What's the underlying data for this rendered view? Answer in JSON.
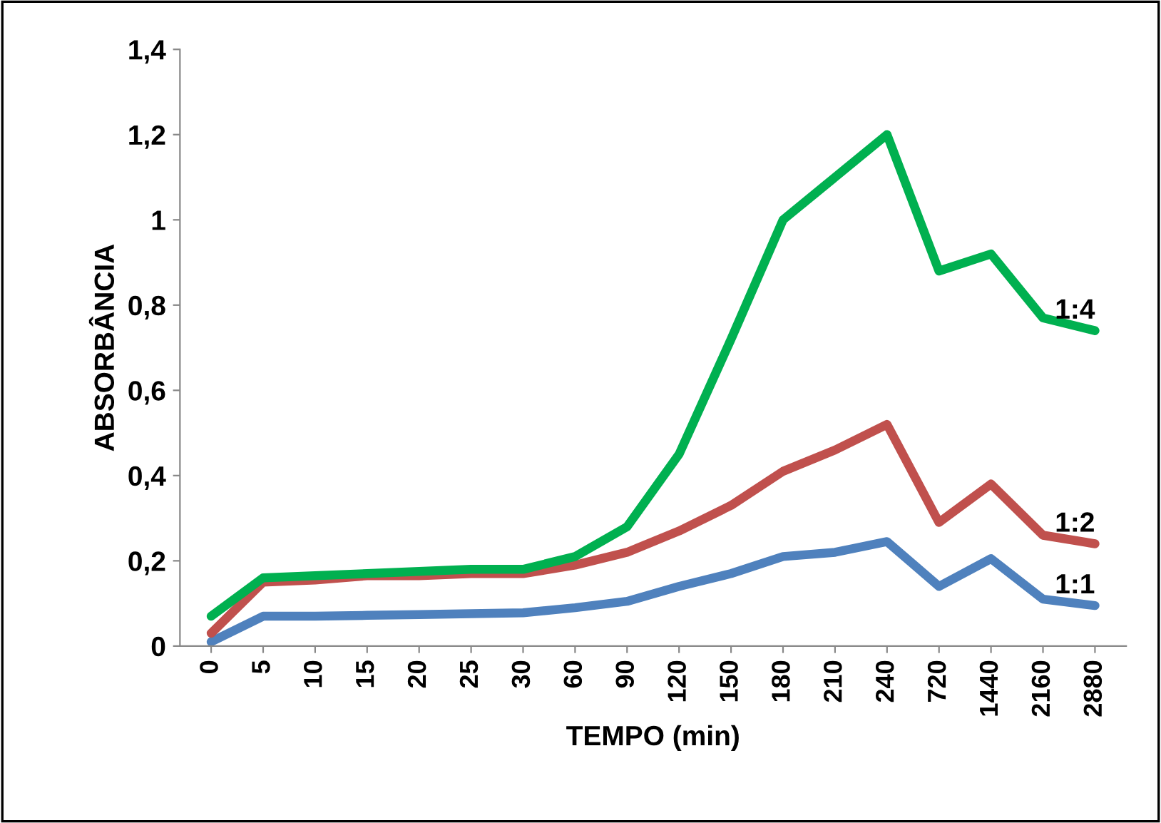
{
  "chart_data": {
    "type": "line",
    "xlabel": "TEMPO (min)",
    "ylabel": "ABSORBÂNCIA",
    "categories": [
      "0",
      "5",
      "10",
      "15",
      "20",
      "25",
      "30",
      "60",
      "90",
      "120",
      "150",
      "180",
      "210",
      "240",
      "720",
      "1440",
      "2160",
      "2880"
    ],
    "series": [
      {
        "name": "1:1",
        "color": "#4f81bd",
        "values": [
          0.01,
          0.07,
          0.07,
          0.072,
          0.074,
          0.076,
          0.078,
          0.09,
          0.105,
          0.14,
          0.17,
          0.21,
          0.22,
          0.245,
          0.14,
          0.205,
          0.11,
          0.095
        ]
      },
      {
        "name": "1:2",
        "color": "#c0504d",
        "values": [
          0.03,
          0.15,
          0.155,
          0.165,
          0.165,
          0.17,
          0.17,
          0.19,
          0.22,
          0.27,
          0.33,
          0.41,
          0.46,
          0.52,
          0.29,
          0.38,
          0.26,
          0.24
        ]
      },
      {
        "name": "1:4",
        "color": "#00b050",
        "values": [
          0.07,
          0.16,
          0.165,
          0.17,
          0.175,
          0.18,
          0.18,
          0.21,
          0.28,
          0.45,
          0.72,
          1.0,
          1.1,
          1.2,
          0.88,
          0.92,
          0.77,
          0.74
        ]
      }
    ],
    "ylim": [
      0,
      1.4
    ],
    "yticks": [
      0,
      {
        "value": 0.2,
        "label": "0,2"
      },
      {
        "value": 0.4,
        "label": "0,4"
      },
      {
        "value": 0.6,
        "label": "0,6"
      },
      {
        "value": 0.8,
        "label": "0,8"
      },
      1,
      {
        "value": 1.2,
        "label": "1,2"
      },
      {
        "value": 1.4,
        "label": "1,4"
      }
    ],
    "grid": false,
    "legend": false,
    "marker": "none",
    "line_style": "solid"
  }
}
